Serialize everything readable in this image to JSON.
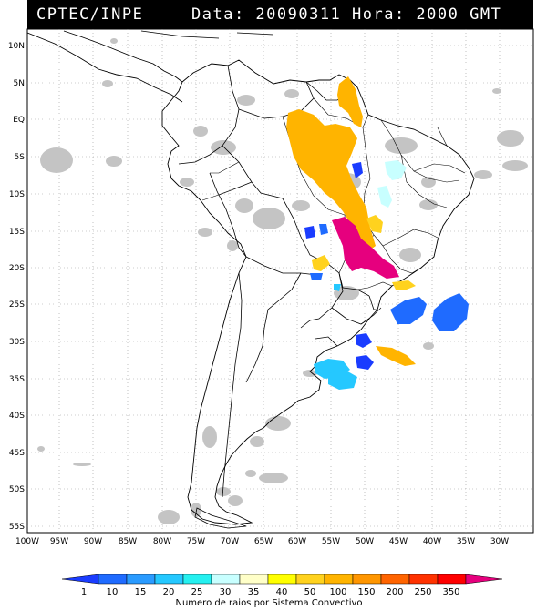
{
  "header": {
    "left": "CPTEC/INPE",
    "right": "Data: 20090311 Hora: 2000 GMT"
  },
  "axes": {
    "lat_labels": [
      "10N",
      "5N",
      "EQ",
      "5S",
      "10S",
      "15S",
      "20S",
      "25S",
      "30S",
      "35S",
      "40S",
      "45S",
      "50S",
      "55S"
    ],
    "lon_labels": [
      "100W",
      "95W",
      "90W",
      "85W",
      "80W",
      "75W",
      "70W",
      "65W",
      "60W",
      "55W",
      "50W",
      "45W",
      "40W",
      "35W",
      "30W"
    ]
  },
  "colorbar": {
    "ticks": [
      "1",
      "10",
      "15",
      "20",
      "25",
      "30",
      "35",
      "40",
      "50",
      "100",
      "150",
      "200",
      "250",
      "350"
    ],
    "colors": [
      "#1a3cff",
      "#1f6bff",
      "#2a9bff",
      "#25c8ff",
      "#25f0f0",
      "#c8ffff",
      "#ffffc8",
      "#ffff00",
      "#ffd21e",
      "#ffb400",
      "#ff9600",
      "#ff6400",
      "#ff3200",
      "#ff0000",
      "#e6007e"
    ],
    "label": "Numero de raios por Sistema Convectivo"
  },
  "legend_meaning": {
    "cloud_color": "#c0c0c0",
    "coast_color": "#000000",
    "grid_color": "#9a9a9a"
  }
}
